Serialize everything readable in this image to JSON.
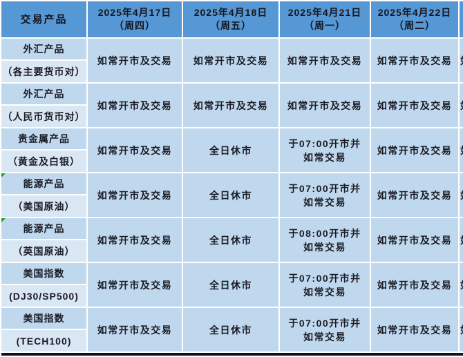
{
  "table": {
    "header": {
      "product_column_label": "交易产品",
      "date_columns": [
        {
          "date": "2025年4月17日",
          "weekday": "（周四）"
        },
        {
          "date": "2025年4月18日",
          "weekday": "（周五）"
        },
        {
          "date": "2025年4月21日",
          "weekday": "（周一）"
        },
        {
          "date": "2025年4月22日",
          "weekday": "（周二）"
        }
      ]
    },
    "rows": [
      {
        "name": "外汇产品",
        "detail": "（各主要货币对）",
        "cells": [
          "如常开市及交易",
          "如常开市及交易",
          "如常开市及交易",
          "如常开市及交易"
        ]
      },
      {
        "name": "外汇产品",
        "detail": "（人民币货币对）",
        "cells": [
          "如常开市及交易",
          "如常开市及交易",
          "如常开市及交易",
          "如常开市及交易"
        ]
      },
      {
        "name": "贵金属产品",
        "detail": "（黄金及白银）",
        "cells": [
          "如常开市及交易",
          "全日休市",
          "于07:00开市并如常交易",
          "如常开市及交易"
        ]
      },
      {
        "name": "能源产品",
        "detail": "（美国原油）",
        "error_marker": true,
        "cells": [
          "如常开市及交易",
          "全日休市",
          "于07:00开市并如常交易",
          "如常开市及交易"
        ]
      },
      {
        "name": "能源产品",
        "detail": "（英国原油）",
        "error_marker": true,
        "cells": [
          "如常开市及交易",
          "全日休市",
          "于08:00开市并如常交易",
          "如常开市及交易"
        ]
      },
      {
        "name": "美国指数",
        "detail": "(DJ30/SP500)",
        "cells": [
          "如常开市及交易",
          "全日休市",
          "于07:00开市并如常交易",
          "如常开市及交易"
        ]
      },
      {
        "name": "美国指数",
        "detail": "(TECH100)",
        "cells": [
          "如常开市及交易",
          "全日休市",
          "于07:00开市并如常交易",
          "如常开市及交易"
        ]
      }
    ],
    "clipped_column_text": "如",
    "colors": {
      "header_bg": "#5598D5",
      "cell_bg": "#BFD8EE",
      "detail_cell_bg": "#D9E6F4",
      "gridline": "#FFFFFF",
      "text": "#1B1B24",
      "error_marker_green": "#1E9E1E",
      "bottom_bar": "#0D1126"
    }
  }
}
